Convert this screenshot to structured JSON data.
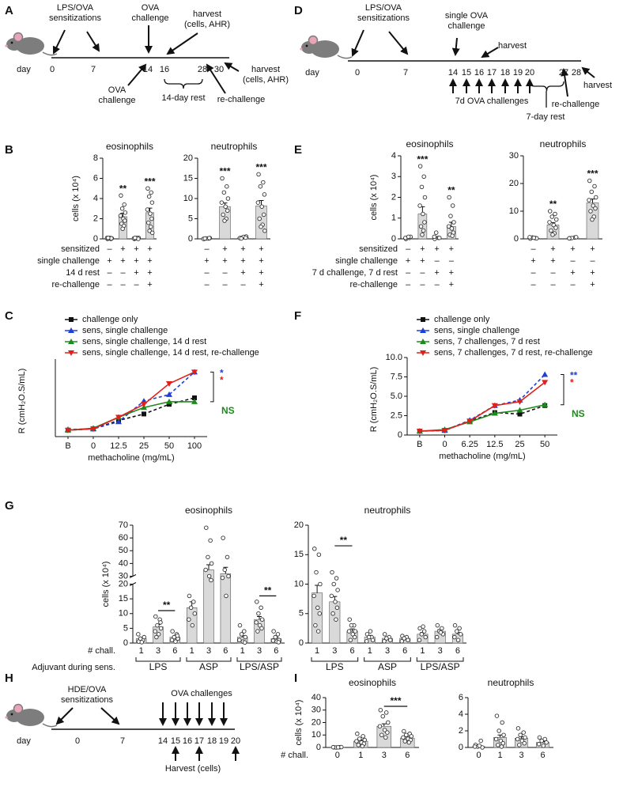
{
  "panel_letters": [
    "A",
    "B",
    "C",
    "D",
    "E",
    "F",
    "G",
    "H",
    "I"
  ],
  "timelines": [
    {
      "day_label": "day",
      "days": [
        0,
        7,
        14,
        16,
        28,
        30
      ],
      "notes": [
        [
          "LPS/OVA",
          "sensitizations"
        ],
        [
          "OVA",
          "challenge"
        ],
        [
          "harvest",
          "(cells, AHR)"
        ],
        [
          "OVA",
          "challenge"
        ],
        [
          "14-day rest"
        ],
        [
          "harvest",
          "(cells, AHR)"
        ],
        [
          "re-challenge"
        ]
      ]
    },
    {
      "day_label": "day",
      "days": [
        0,
        7,
        14,
        15,
        16,
        17,
        18,
        19,
        20,
        27,
        28
      ],
      "notes": [
        [
          "LPS/OVA",
          "sensitizations"
        ],
        [
          "single OVA",
          "challenge"
        ],
        [
          "harvest"
        ],
        [
          "7d OVA challenges"
        ],
        [
          "7-day rest"
        ],
        [
          "re-challenge"
        ],
        [
          "harvest"
        ]
      ]
    },
    {
      "day_label": "day",
      "days": [
        0,
        7,
        14,
        15,
        16,
        17,
        18,
        19,
        20
      ],
      "notes": [
        [
          "HDE/OVA",
          "sensitizations"
        ],
        [
          "OVA challenges"
        ],
        [
          "Harvest (cells)"
        ]
      ]
    }
  ],
  "condition_tables": [
    {
      "rows": [
        {
          "label": "sensitized",
          "cells": [
            "–",
            "+",
            "+",
            "+"
          ]
        },
        {
          "label": "single challenge",
          "cells": [
            "+",
            "+",
            "+",
            "+"
          ]
        },
        {
          "label": "14 d rest",
          "cells": [
            "–",
            "–",
            "+",
            "+"
          ]
        },
        {
          "label": "re-challenge",
          "cells": [
            "–",
            "–",
            "–",
            "+"
          ]
        }
      ]
    },
    {
      "rows": [
        {
          "label": "sensitized",
          "cells": [
            "–",
            "+",
            "+",
            "+"
          ]
        },
        {
          "label": "single challenge",
          "cells": [
            "+",
            "+",
            "–",
            "–"
          ]
        },
        {
          "label": "7 d challenge, 7 d rest",
          "cells": [
            "–",
            "–",
            "+",
            "+"
          ]
        },
        {
          "label": "re-challenge",
          "cells": [
            "–",
            "–",
            "–",
            "+"
          ]
        }
      ]
    }
  ],
  "chart_data": [
    {
      "type": "bar",
      "title": "eosinophils",
      "ylabel": "cells (x 10⁴)",
      "color": "#d9d9d9",
      "categories": [
        null,
        null,
        null,
        null
      ],
      "values": [
        0.05,
        2.2,
        0.05,
        2.6
      ],
      "errors": [
        0.02,
        0.35,
        0.02,
        0.45
      ],
      "points": [
        [
          0,
          0,
          0.05,
          0.05,
          0.1,
          0.1,
          0.05,
          0.1
        ],
        [
          4.3,
          3.4,
          3.0,
          2.6,
          2.3,
          2.0,
          1.8,
          1.5,
          1.3,
          1.0
        ],
        [
          0,
          0.05,
          0.05,
          0.1,
          0.05,
          0.1,
          0,
          0.1
        ],
        [
          5.0,
          4.6,
          4.2,
          3.6,
          2.9,
          2.5,
          2.0,
          1.6,
          1.2,
          0.8,
          0.6
        ]
      ],
      "stars": [
        null,
        "**",
        null,
        "***"
      ],
      "ylim": [
        0,
        8
      ],
      "yticks": [
        0,
        2,
        4,
        6,
        8
      ]
    },
    {
      "type": "bar",
      "title": "neutrophils",
      "color": "#d9d9d9",
      "categories": [
        null,
        null,
        null,
        null
      ],
      "values": [
        0.1,
        8,
        0.3,
        8.2
      ],
      "errors": [
        0.03,
        0.9,
        0.08,
        1.3
      ],
      "points": [
        [
          0,
          0.1,
          0.1,
          0.2,
          0,
          0.1,
          0.2,
          0.1
        ],
        [
          15,
          13,
          11.5,
          10,
          9,
          8,
          7,
          6,
          5,
          4.5
        ],
        [
          0.2,
          0.4,
          0.3,
          0.6,
          0.2,
          0.5,
          0.3,
          0.1
        ],
        [
          16,
          14,
          13,
          11,
          9,
          8,
          6,
          5,
          3.5,
          3,
          2
        ]
      ],
      "stars": [
        null,
        "***",
        null,
        "***"
      ],
      "ylim": [
        0,
        20
      ],
      "yticks": [
        0,
        5,
        10,
        15,
        20
      ]
    },
    {
      "type": "line",
      "ylabel": "R (cmH₂O.S/mL)",
      "xlabel": "methacholine (mg/mL)",
      "categories": [
        "B",
        "0",
        "12.5",
        "25",
        "50",
        "100"
      ],
      "ylim": [
        0,
        12
      ],
      "series": [
        {
          "name": "challenge only",
          "color": "#111111",
          "marker": "square",
          "dashed": true,
          "values": [
            1.0,
            1.2,
            2.5,
            3.5,
            5.0,
            6.0
          ]
        },
        {
          "name": "sens, single challenge",
          "color": "#1f3fd8",
          "marker": "triangle-up",
          "dashed": true,
          "values": [
            1.1,
            1.2,
            2.3,
            5.5,
            6.5,
            10.0
          ]
        },
        {
          "name": "sens, single challenge, 14 d rest",
          "color": "#1e8a1e",
          "marker": "triangle-up",
          "dashed": false,
          "values": [
            1.0,
            1.3,
            3.0,
            4.5,
            5.4,
            5.4
          ]
        },
        {
          "name": "sens, single challenge, 14 d rest, re-challenge",
          "color": "#e0201b",
          "marker": "triangle-down",
          "dashed": false,
          "values": [
            1.0,
            1.2,
            3.0,
            5.0,
            8.2,
            10.0
          ]
        }
      ],
      "annotations": [
        {
          "text": "*",
          "color": "#1f3fd8"
        },
        {
          "text": "*",
          "color": "#e0201b"
        },
        {
          "text": "NS",
          "color": "#1e8a1e"
        }
      ]
    },
    {
      "type": "bar",
      "title": "eosinophils",
      "ylabel": "cells (x 10⁴)",
      "color": "#d9d9d9",
      "categories": [
        null,
        null,
        null,
        null
      ],
      "values": [
        0.05,
        1.2,
        0.05,
        0.6
      ],
      "errors": [
        0.02,
        0.35,
        0.05,
        0.2
      ],
      "points": [
        [
          0,
          0.05,
          0.05,
          0.1,
          0.05,
          0.1
        ],
        [
          3.5,
          3.0,
          2.5,
          2.0,
          1.6,
          1.2,
          0.8,
          0.6,
          0.4,
          0.2
        ],
        [
          0,
          0.05,
          0.3,
          0.05,
          0.1
        ],
        [
          2.0,
          1.6,
          1.1,
          0.8,
          0.6,
          0.5,
          0.3,
          0.2,
          0.15
        ]
      ],
      "stars": [
        null,
        "***",
        null,
        "**"
      ],
      "ylim": [
        0,
        4
      ],
      "yticks": [
        0,
        1,
        2,
        3,
        4
      ]
    },
    {
      "type": "bar",
      "title": "neutrophils",
      "color": "#d9d9d9",
      "categories": [
        null,
        null,
        null,
        null
      ],
      "values": [
        0.2,
        5,
        0.3,
        13
      ],
      "errors": [
        0.1,
        0.9,
        0.1,
        1.4
      ],
      "points": [
        [
          0.1,
          0.3,
          0.5,
          0.2,
          0.6,
          0.4
        ],
        [
          10,
          9,
          8,
          7,
          6,
          5,
          4,
          3,
          2,
          1.5
        ],
        [
          0.2,
          0.5,
          0.3,
          0.6,
          0.2
        ],
        [
          21,
          19,
          17,
          15,
          14,
          12,
          11,
          10,
          8,
          7
        ]
      ],
      "stars": [
        null,
        "**",
        null,
        "***"
      ],
      "ylim": [
        0,
        30
      ],
      "yticks": [
        0,
        10,
        20,
        30
      ]
    },
    {
      "type": "line",
      "ylabel": "R (cmH₂O.S/mL)",
      "xlabel": "methacholine (mg/mL)",
      "categories": [
        "B",
        "0",
        "6.25",
        "12.5",
        "25",
        "50"
      ],
      "ylim": [
        0,
        10
      ],
      "yticks": [
        0,
        2.5,
        {
          "value": 5,
          "label": "5.0"
        },
        7.5,
        {
          "value": 10,
          "label": "10.0"
        }
      ],
      "series": [
        {
          "name": "challenge only",
          "color": "#111111",
          "marker": "square",
          "dashed": true,
          "values": [
            0.5,
            0.6,
            1.8,
            2.9,
            2.7,
            3.8
          ]
        },
        {
          "name": "sens, single challenge",
          "color": "#1f3fd8",
          "marker": "triangle-up",
          "dashed": true,
          "values": [
            0.5,
            0.6,
            1.9,
            3.8,
            4.5,
            7.8
          ]
        },
        {
          "name": "sens, 7 challenges, 7 d rest",
          "color": "#1e8a1e",
          "marker": "triangle-up",
          "dashed": false,
          "values": [
            0.5,
            0.7,
            1.7,
            2.8,
            3.2,
            3.9
          ]
        },
        {
          "name": "sens, 7 challenges, 7 d rest, re-challenge",
          "color": "#e0201b",
          "marker": "triangle-down",
          "dashed": false,
          "values": [
            0.5,
            0.6,
            1.8,
            3.8,
            4.3,
            6.8
          ]
        }
      ],
      "annotations": [
        {
          "text": "**",
          "color": "#1f3fd8"
        },
        {
          "text": "*",
          "color": "#e0201b"
        },
        {
          "text": "NS",
          "color": "#1e8a1e"
        }
      ]
    },
    {
      "type": "bar",
      "title": "eosinophils",
      "ylabel": "cells (x 10⁴)",
      "color": "#d9d9d9",
      "x_prefix": "# chall.",
      "group_axis_label": "Adjuvant during sens.",
      "group_labels": [
        "LPS",
        "ASP",
        "LPS/ASP"
      ],
      "categories": [
        "1",
        "3",
        "6",
        "1",
        "3",
        "6",
        "1",
        "3",
        "6"
      ],
      "values": [
        1.5,
        5.5,
        2,
        12,
        35,
        32,
        2,
        8,
        1.5
      ],
      "errors": [
        0.4,
        0.8,
        0.4,
        2,
        4,
        5,
        0.5,
        1,
        0.4
      ],
      "points": [
        [
          0.5,
          1,
          1.5,
          2,
          3,
          0.3
        ],
        [
          9,
          8,
          6,
          5,
          4,
          3,
          7,
          2
        ],
        [
          4,
          3,
          2,
          1.5,
          1,
          0.5,
          2.5
        ],
        [
          16,
          14,
          12,
          10,
          8,
          6
        ],
        [
          68,
          58,
          45,
          40,
          35,
          30,
          25
        ],
        [
          60,
          45,
          35,
          30,
          28,
          16
        ],
        [
          6,
          4,
          3,
          2,
          1,
          0.5,
          0.2
        ],
        [
          14,
          12,
          10,
          8,
          7,
          6,
          5,
          4
        ],
        [
          4,
          3,
          2,
          1,
          0.8,
          0.5,
          0.3
        ]
      ],
      "brackets": [
        {
          "label": "**",
          "categories": [
            1,
            2
          ],
          "value": 11
        },
        {
          "label": "**",
          "categories": [
            7,
            8
          ],
          "value": 16
        }
      ],
      "ylim": [
        0,
        70
      ],
      "ybreak": [
        20,
        30
      ],
      "yticks": [
        0,
        5,
        10,
        15,
        20,
        30,
        40,
        50,
        60,
        70
      ]
    },
    {
      "type": "bar",
      "title": "neutrophils",
      "color": "#d9d9d9",
      "group_labels": [
        "LPS",
        "ASP",
        "LPS/ASP"
      ],
      "categories": [
        "1",
        "3",
        "6",
        "1",
        "3",
        "6",
        "1",
        "3",
        "6"
      ],
      "values": [
        8.5,
        7,
        2,
        1,
        0.8,
        0.8,
        1.5,
        2,
        1.5
      ],
      "errors": [
        1.3,
        0.9,
        0.4,
        0.3,
        0.2,
        0.2,
        0.3,
        0.3,
        0.3
      ],
      "points": [
        [
          16,
          15,
          12,
          10,
          8,
          6,
          5,
          3,
          2
        ],
        [
          12,
          11,
          10,
          9,
          8,
          7,
          6,
          5,
          4
        ],
        [
          4,
          3,
          3,
          2,
          2,
          1.5,
          1,
          0.5
        ],
        [
          1.5,
          1,
          1,
          0.5,
          0.3,
          2
        ],
        [
          1.5,
          1,
          0.8,
          0.5,
          0.3
        ],
        [
          1.2,
          1,
          0.8,
          0.5,
          0.3
        ],
        [
          2.5,
          2,
          1.5,
          1,
          0.5,
          2.8
        ],
        [
          3,
          2.5,
          2,
          1.5,
          1,
          1.8
        ],
        [
          3,
          2.5,
          2,
          1.5,
          1,
          0.5
        ]
      ],
      "brackets": [
        {
          "label": "**",
          "categories": [
            1,
            2
          ],
          "value": 16.5
        }
      ],
      "ylim": [
        0,
        20
      ],
      "yticks": [
        0,
        5,
        10,
        15,
        20
      ]
    },
    {
      "type": "bar",
      "title": "eosinophils",
      "ylabel": "cells (x 10⁴)",
      "color": "#d9d9d9",
      "x_prefix": "# chall.",
      "categories": [
        "0",
        "1",
        "3",
        "6"
      ],
      "values": [
        0.1,
        5,
        17,
        7.5
      ],
      "errors": [
        0.05,
        1,
        2,
        1
      ],
      "points": [
        [
          0.1,
          0.2,
          0,
          0.3,
          0.2,
          0.1
        ],
        [
          11,
          9,
          7,
          6,
          5,
          4,
          3,
          2,
          1
        ],
        [
          30,
          28,
          25,
          20,
          17,
          14,
          12,
          10,
          8
        ],
        [
          13,
          11,
          10,
          9,
          8,
          7,
          6,
          5,
          4
        ]
      ],
      "brackets": [
        {
          "label": "***",
          "categories": [
            2,
            3
          ],
          "value": 33
        }
      ],
      "ylim": [
        0,
        40
      ],
      "yticks": [
        0,
        10,
        20,
        30,
        40
      ]
    },
    {
      "type": "bar",
      "title": "neutrophils",
      "color": "#d9d9d9",
      "categories": [
        "0",
        "1",
        "3",
        "6"
      ],
      "values": [
        0.1,
        1.2,
        1.1,
        0.6
      ],
      "errors": [
        0.08,
        0.3,
        0.2,
        0.12
      ],
      "points": [
        [
          0.3,
          0.8,
          0.1,
          0,
          0.1,
          0.2
        ],
        [
          3.8,
          3,
          2,
          1.5,
          1,
          0.8,
          0.5,
          0.3,
          0.1
        ],
        [
          2.3,
          1.8,
          1.5,
          1.2,
          1,
          0.8,
          0.5,
          0.3
        ],
        [
          1.2,
          1,
          0.8,
          0.6,
          0.4,
          0.2
        ]
      ],
      "ylim": [
        0,
        6
      ],
      "yticks": [
        0,
        2,
        4,
        6
      ]
    }
  ]
}
